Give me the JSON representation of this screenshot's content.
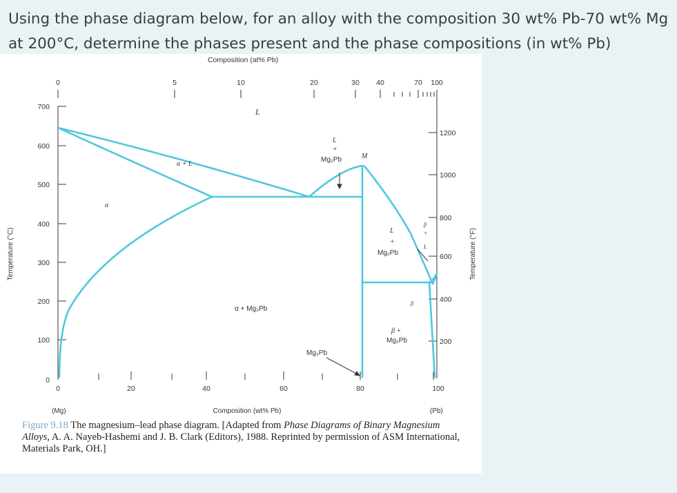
{
  "question": {
    "line1": "Using the phase diagram below, for an alloy with the composition 30 wt% Pb-70 wt% Mg",
    "line2": "at 200°C, determine the phases present and the phase compositions (in wt% Pb)"
  },
  "figure": {
    "top_axis_title": "Composition (at% Pb)",
    "top_ticks": [
      "0",
      "5",
      "10",
      "20",
      "30",
      "40",
      "70",
      "100"
    ],
    "bottom_axis_title": "Composition (wt% Pb)",
    "bottom_ticks": [
      "0",
      "20",
      "40",
      "60",
      "80",
      "100"
    ],
    "left_end_label": "(Mg)",
    "right_end_label": "(Pb)",
    "left_axis_title": "Temperature (°C)",
    "left_ticks": [
      "0",
      "100",
      "200",
      "300",
      "400",
      "500",
      "600",
      "700"
    ],
    "right_axis_title": "Temperature (°F)",
    "right_ticks": [
      "200",
      "400",
      "600",
      "800",
      "1000",
      "1200"
    ],
    "region_labels": {
      "L": "L",
      "alpha_L": "α + L",
      "alpha": "α",
      "L_Mg2Pb_top_1": "L",
      "L_Mg2Pb_top_2": "+",
      "L_Mg2Pb_top_3": "Mg₂Pb",
      "M": "M",
      "alpha_Mg2Pb": "α + Mg₂Pb",
      "L_Mg2Pb_right_1": "L",
      "L_Mg2Pb_right_2": "+",
      "L_Mg2Pb_right_3": "Mg₂Pb",
      "beta_L_1": "β",
      "beta_L_2": "+",
      "beta_L_3": "L",
      "beta": "β",
      "beta_Mg2Pb_1": "β +",
      "beta_Mg2Pb_2": "Mg₂Pb",
      "Mg2Pb": "Mg₂Pb"
    },
    "colors": {
      "phase_line": "#4ec8dc",
      "axis": "#333333",
      "caption_fig_num": "#7fa7c9"
    }
  },
  "caption": {
    "fig_num": "Figure 9.18",
    "text_1": "The magnesium–lead phase diagram. [Adapted from",
    "italic_1": "Phase Diagrams of Binary Magnesium Alloys,",
    "text_2": "A. A. Nayeb-Hashemi and J. B. Clark (Editors), 1988. Reprinted by permission of ASM International, Materials Park, OH.]"
  }
}
